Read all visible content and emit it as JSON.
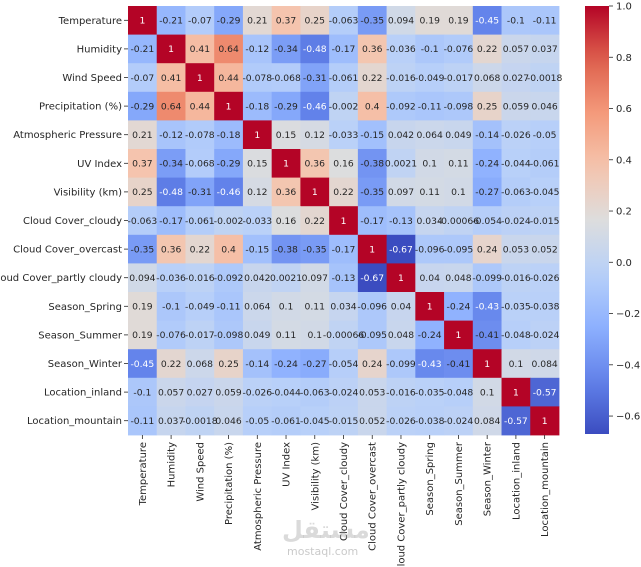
{
  "chart_data": {
    "type": "heatmap",
    "title": "",
    "xlabel": "",
    "ylabel": "",
    "colormap": "coolwarm",
    "annot": true,
    "vmin": -0.67,
    "vmax": 1.0,
    "labels": [
      "Temperature",
      "Humidity",
      "Wind Speed",
      "Precipitation (%)",
      "Atmospheric Pressure",
      "UV Index",
      "Visibility (km)",
      "Cloud Cover_cloudy",
      "Cloud Cover_overcast",
      "Cloud Cover_partly cloudy",
      "Season_Spring",
      "Season_Summer",
      "Season_Winter",
      "Location_inland",
      "Location_mountain"
    ],
    "matrix": [
      [
        1,
        -0.21,
        -0.07,
        -0.29,
        0.21,
        0.37,
        0.25,
        -0.063,
        -0.35,
        0.094,
        0.19,
        0.19,
        -0.45,
        -0.1,
        -0.11
      ],
      [
        -0.21,
        1,
        0.41,
        0.64,
        -0.12,
        -0.34,
        -0.48,
        -0.17,
        0.36,
        -0.036,
        -0.1,
        -0.076,
        0.22,
        0.057,
        0.037
      ],
      [
        -0.07,
        0.41,
        1,
        0.44,
        -0.078,
        -0.068,
        -0.31,
        -0.061,
        0.22,
        -0.016,
        -0.049,
        -0.017,
        0.068,
        0.027,
        -0.0018
      ],
      [
        -0.29,
        0.64,
        0.44,
        1,
        -0.18,
        -0.29,
        -0.46,
        -0.002,
        0.4,
        -0.092,
        -0.11,
        -0.098,
        0.25,
        0.059,
        0.046
      ],
      [
        0.21,
        -0.12,
        -0.078,
        -0.18,
        1,
        0.15,
        0.12,
        -0.033,
        -0.15,
        0.042,
        0.064,
        0.049,
        -0.14,
        -0.026,
        -0.05
      ],
      [
        0.37,
        -0.34,
        -0.068,
        -0.29,
        0.15,
        1,
        0.36,
        0.16,
        -0.38,
        0.0021,
        0.1,
        0.11,
        -0.24,
        -0.044,
        -0.061
      ],
      [
        0.25,
        -0.48,
        -0.31,
        -0.46,
        0.12,
        0.36,
        1,
        0.22,
        -0.35,
        0.097,
        0.11,
        0.1,
        -0.27,
        -0.063,
        -0.045
      ],
      [
        -0.063,
        -0.17,
        -0.061,
        -0.002,
        -0.033,
        0.16,
        0.22,
        1,
        -0.17,
        -0.13,
        0.034,
        -0.00066,
        -0.054,
        -0.024,
        -0.015
      ],
      [
        -0.35,
        0.36,
        0.22,
        0.4,
        -0.15,
        -0.38,
        -0.35,
        -0.17,
        1,
        -0.67,
        -0.096,
        -0.095,
        0.24,
        0.053,
        0.052
      ],
      [
        0.094,
        -0.036,
        -0.016,
        -0.092,
        0.042,
        0.0021,
        0.097,
        -0.13,
        -0.67,
        1,
        0.04,
        0.048,
        -0.099,
        -0.016,
        -0.026
      ],
      [
        0.19,
        -0.1,
        -0.049,
        -0.11,
        0.064,
        0.1,
        0.11,
        0.034,
        -0.096,
        0.04,
        1,
        -0.24,
        -0.43,
        -0.035,
        -0.038
      ],
      [
        0.19,
        -0.076,
        -0.017,
        -0.098,
        0.049,
        0.11,
        0.1,
        -0.00066,
        -0.095,
        0.048,
        -0.24,
        1,
        -0.41,
        -0.048,
        -0.024
      ],
      [
        -0.45,
        0.22,
        0.068,
        0.25,
        -0.14,
        -0.24,
        -0.27,
        -0.054,
        0.24,
        -0.099,
        -0.43,
        -0.41,
        1,
        0.1,
        0.084
      ],
      [
        -0.1,
        0.057,
        0.027,
        0.059,
        -0.026,
        -0.044,
        -0.063,
        -0.024,
        0.053,
        -0.016,
        -0.035,
        -0.048,
        0.1,
        1,
        -0.57
      ],
      [
        -0.11,
        0.037,
        -0.0018,
        0.046,
        -0.05,
        -0.061,
        -0.045,
        -0.015,
        0.052,
        -0.026,
        -0.038,
        -0.024,
        0.084,
        -0.57,
        1
      ]
    ],
    "colorbar": {
      "ticks": [
        1.0,
        0.8,
        0.6,
        0.4,
        0.2,
        0.0,
        -0.2,
        -0.4,
        -0.6
      ],
      "tick_labels": [
        "1.0",
        "0.8",
        "0.6",
        "0.4",
        "0.2",
        "0.0",
        "−0.2",
        "−0.4",
        "−0.6"
      ],
      "placement": "right"
    },
    "grid": false
  },
  "watermark": {
    "arabic": "مستقل",
    "latin": "mostaql.com"
  }
}
